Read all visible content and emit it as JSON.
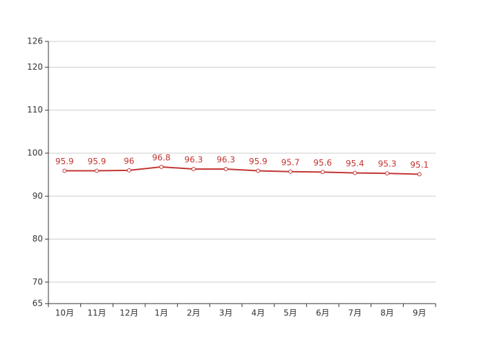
{
  "chart_data": {
    "type": "line",
    "categories": [
      "10月",
      "11月",
      "12月",
      "1月",
      "2月",
      "3月",
      "4月",
      "5月",
      "6月",
      "7月",
      "8月",
      "9月"
    ],
    "values": [
      95.9,
      95.9,
      96,
      96.8,
      96.3,
      96.3,
      95.9,
      95.7,
      95.6,
      95.4,
      95.3,
      95.1
    ],
    "color": "#c23531",
    "ylim": [
      65,
      126
    ],
    "yticks": [
      65,
      70,
      80,
      90,
      100,
      110,
      120,
      126
    ],
    "grid": true
  }
}
